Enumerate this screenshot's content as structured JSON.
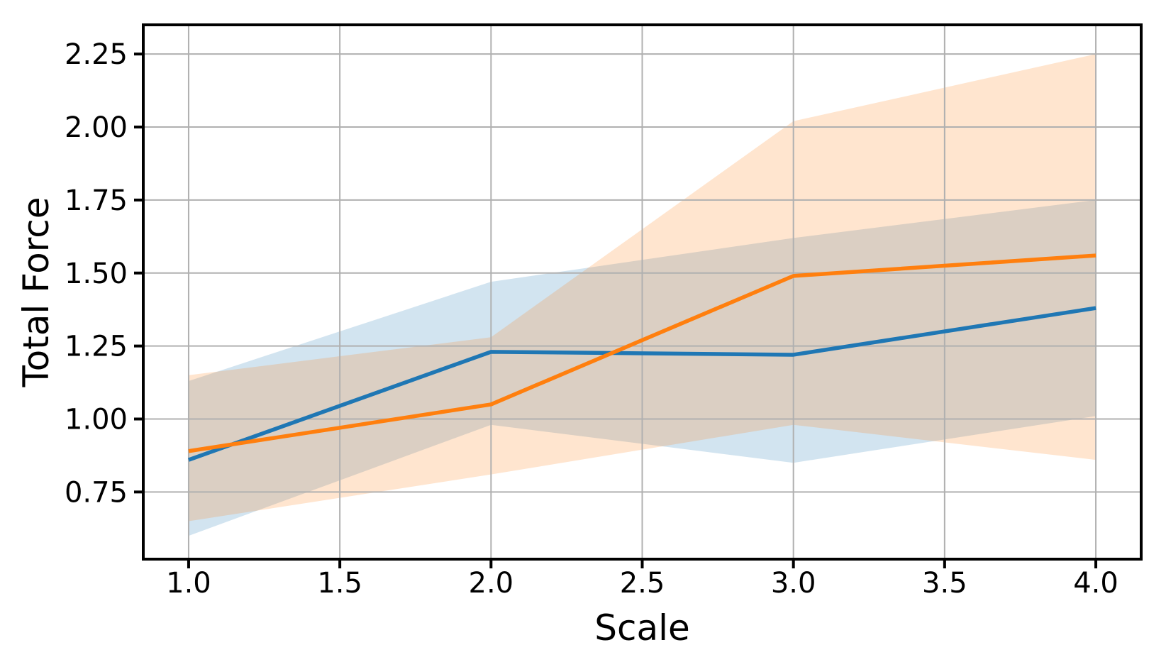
{
  "figure": {
    "background": "#ffffff"
  },
  "chart_data": {
    "type": "line",
    "title": "",
    "xlabel": "Scale",
    "ylabel": "Total Force",
    "x": [
      1.0,
      2.0,
      3.0,
      4.0
    ],
    "series": [
      {
        "name": "blue-series",
        "color": "#1f77b4",
        "band_opacity": 0.2,
        "values": [
          0.86,
          1.23,
          1.22,
          1.38
        ],
        "band_lower": [
          0.6,
          0.98,
          0.85,
          1.01
        ],
        "band_upper": [
          1.13,
          1.47,
          1.62,
          1.75
        ]
      },
      {
        "name": "orange-series",
        "color": "#ff7f0e",
        "band_opacity": 0.2,
        "values": [
          0.89,
          1.05,
          1.49,
          1.56
        ],
        "band_lower": [
          0.65,
          0.81,
          0.98,
          0.86
        ],
        "band_upper": [
          1.15,
          1.28,
          2.02,
          2.25
        ]
      }
    ],
    "xlim": [
      0.85,
      4.15
    ],
    "ylim": [
      0.52,
      2.35
    ],
    "xticks": {
      "values": [
        1.0,
        1.5,
        2.0,
        2.5,
        3.0,
        3.5,
        4.0
      ],
      "labels": [
        "1.0",
        "1.5",
        "2.0",
        "2.5",
        "3.0",
        "3.5",
        "4.0"
      ]
    },
    "yticks": {
      "values": [
        0.75,
        1.0,
        1.25,
        1.5,
        1.75,
        2.0,
        2.25
      ],
      "labels": [
        "0.75",
        "1.00",
        "1.25",
        "1.50",
        "1.75",
        "2.00",
        "2.25"
      ]
    },
    "grid": true,
    "grid_color": "#b0b0b0",
    "spine_color": "#000000",
    "tick_label_fontsize": 40,
    "axis_label_fontsize": 50,
    "legend": null
  }
}
